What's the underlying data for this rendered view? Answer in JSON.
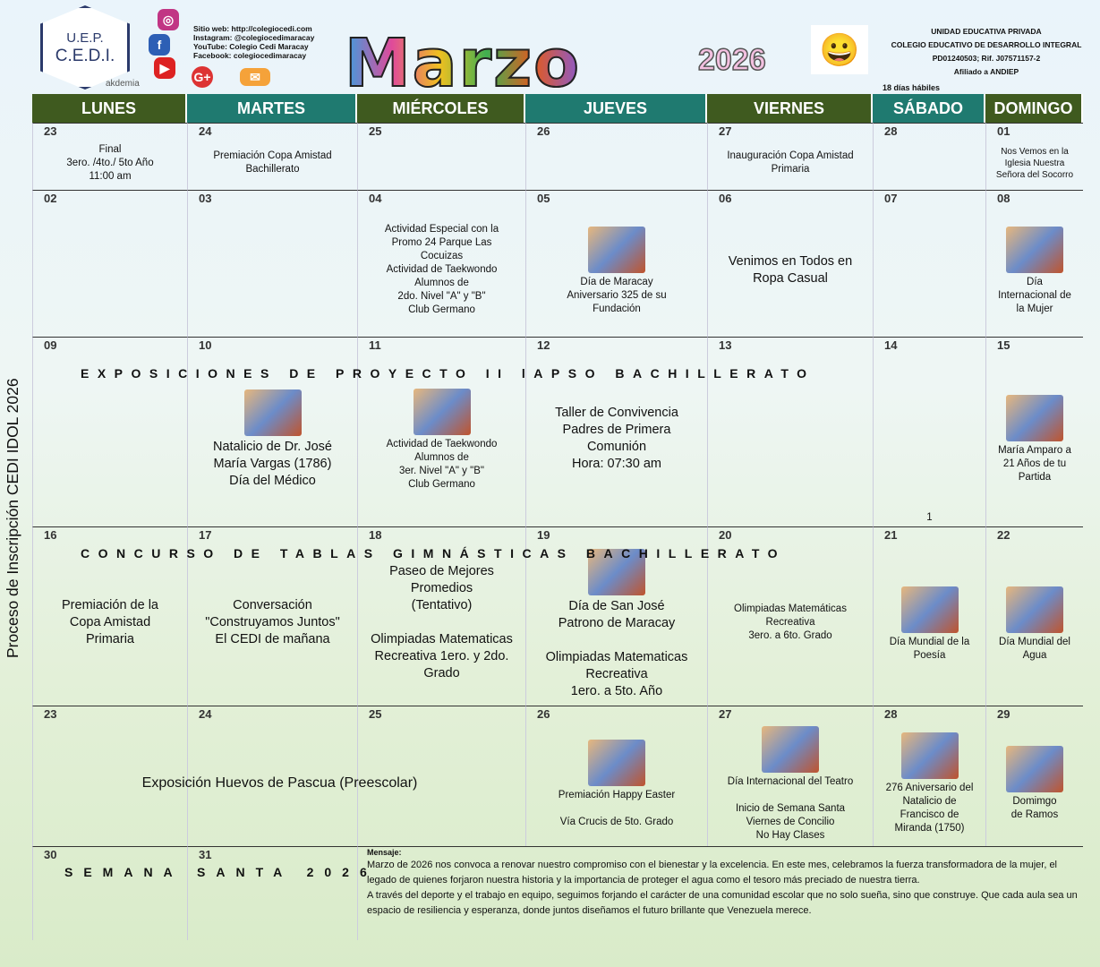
{
  "header": {
    "logo_line1": "U.E.P.",
    "logo_line2": "C.E.D.I.",
    "akdemia": "akdemia",
    "contact": [
      "Sitio web: http://colegiocedi.com",
      "Instagram: @colegiocedimaracay",
      "YouTube: Colegio Cedi Maracay",
      "Facebook: colegiocedimaracay"
    ],
    "social_icons": [
      "instagram-icon",
      "facebook-icon",
      "youtube-icon",
      "google-plus-icon",
      "email-icon"
    ],
    "month": "Marzo",
    "year": "2026",
    "school": [
      "UNIDAD EDUCATIVA PRIVADA",
      "COLEGIO EDUCATIVO DE DESARROLLO INTEGRAL",
      "PD01240503; Rif. J07571157-2",
      "Afiliado a ANDIEP"
    ],
    "business_days": "18 días hábiles"
  },
  "colors": {
    "header_olive": "#3f5a1f",
    "header_teal": "#1f7a70"
  },
  "weekdays": [
    "LUNES",
    "MARTES",
    "MIÉRCOLES",
    "JUEVES",
    "VIERNES",
    "SÁBADO",
    "DOMINGO"
  ],
  "side_text": "Proceso de Inscripción CEDI IDOL 2026",
  "weeks": [
    {
      "days": [
        {
          "n": "23",
          "t": "Final\n3ero. /4to./ 5to Año\n11:00 am",
          "c": "s"
        },
        {
          "n": "24",
          "t": "Premiación Copa Amistad\nBachillerato",
          "c": "s"
        },
        {
          "n": "25",
          "t": ""
        },
        {
          "n": "26",
          "t": ""
        },
        {
          "n": "27",
          "t": "Inauguración Copa Amistad\nPrimaria",
          "c": "s"
        },
        {
          "n": "28",
          "t": ""
        },
        {
          "n": "01",
          "t": "Nos Vemos en la\nIglesia Nuestra\nSeñora del Socorro",
          "c": "xs"
        }
      ]
    },
    {
      "days": [
        {
          "n": "02",
          "t": ""
        },
        {
          "n": "03",
          "t": ""
        },
        {
          "n": "04",
          "t": "Actividad Especial con la\nPromo 24 Parque Las\nCocuizas\nActividad de Taekwondo\nAlumnos de\n2do. Nivel \"A\" y \"B\"\nClub Germano",
          "c": "s"
        },
        {
          "n": "05",
          "t": "Día de Maracay\nAniversario 325 de su\nFundación",
          "c": "s",
          "pic": "maracay-image"
        },
        {
          "n": "06",
          "t": "Venimos en Todos en\nRopa Casual"
        },
        {
          "n": "07",
          "t": ""
        },
        {
          "n": "08",
          "t": "Día\nInternacional de\nla Mujer",
          "c": "s",
          "pic": "women-image"
        }
      ]
    },
    {
      "banner": "EXPOSICIONES DE PROYECTO II lAPSO BACHILLERATO",
      "days": [
        {
          "n": "09",
          "t": ""
        },
        {
          "n": "10",
          "t": "Natalicio de Dr. José\nMaría Vargas (1786)\nDía del Médico",
          "pic": "vargas-portrait"
        },
        {
          "n": "11",
          "t": "Actividad de Taekwondo\nAlumnos de\n3er. Nivel \"A\" y \"B\"\nClub Germano",
          "c": "s",
          "pic": "taekwondo-logo"
        },
        {
          "n": "12",
          "t": "Taller de Convivencia\nPadres de Primera\nComunión\nHora: 07:30 am"
        },
        {
          "n": "13",
          "t": ""
        },
        {
          "n": "14",
          "t": "1",
          "c": "s"
        },
        {
          "n": "15",
          "t": "María Amparo a\n21 Años de tu\nPartida",
          "c": "s",
          "pic": "memorial-image"
        }
      ]
    },
    {
      "banner": "CONCURSO DE TABLAS GIMNÁSTICAS BACHILLERATO",
      "days": [
        {
          "n": "16",
          "t": "Premiación de la\nCopa Amistad\nPrimaria"
        },
        {
          "n": "17",
          "t": "Conversación\n\"Construyamos Juntos\"\nEl CEDI de mañana"
        },
        {
          "n": "18",
          "t": "Paseo de Mejores\nPromedios\n(Tentativo)\n\nOlimpiadas Matematicas\nRecreativa 1ero. y 2do.\nGrado"
        },
        {
          "n": "19",
          "t": "Día de San José\nPatrono de Maracay\n\nOlimpiadas Matematicas\nRecreativa\n1ero. a 5to. Año",
          "pic": "san-jose-image"
        },
        {
          "n": "20",
          "t": "Olimpiadas Matemáticas\nRecreativa\n3ero. a 6to. Grado",
          "c": "s"
        },
        {
          "n": "21",
          "t": "Día Mundial de la\nPoesía",
          "c": "s",
          "pic": "book-image"
        },
        {
          "n": "22",
          "t": "Día Mundial del\nAgua",
          "c": "s",
          "pic": "earth-image"
        }
      ]
    },
    {
      "days": [
        {
          "n": "23",
          "t": "Exposición Huevos de Pascua (Preescolar)",
          "span": 3
        },
        {
          "n": "24",
          "t": ""
        },
        {
          "n": "25",
          "t": ""
        },
        {
          "n": "26",
          "t": "Premiación Happy Easter\n\nVía Crucis de 5to. Grado",
          "c": "s",
          "pic": "happy-easter-image"
        },
        {
          "n": "27",
          "t": "Día Internacional del Teatro\n\nInicio de Semana Santa\nViernes de Concilio\nNo Hay Clases",
          "c": "s",
          "pic": "theater-masks-image"
        },
        {
          "n": "28",
          "t": "276 Aniversario del\nNatalicio de\nFrancisco de\nMiranda (1750)",
          "c": "s",
          "pic": "miranda-flag-image"
        },
        {
          "n": "29",
          "t": "Domimgo\nde Ramos",
          "c": "s",
          "pic": "palm-sunday-image"
        }
      ]
    },
    {
      "banner": "SEMANA SANTA 2026",
      "days": [
        {
          "n": "30",
          "t": ""
        },
        {
          "n": "31",
          "t": ""
        }
      ]
    }
  ],
  "message": {
    "title": "Mensaje:",
    "paragraphs": [
      "Marzo de 2026 nos convoca a renovar nuestro compromiso con el bienestar y la excelencia. En este mes, celebramos la fuerza transformadora de la mujer, el legado de quienes forjaron nuestra historia y la importancia de proteger el agua como el tesoro más preciado de nuestra tierra.",
      "A través del deporte y el trabajo en equipo, seguimos forjando el carácter de una comunidad escolar que no solo sueña, sino que construye. Que cada aula sea un espacio de resiliencia y esperanza, donde juntos diseñamos el futuro brillante que Venezuela merece."
    ]
  }
}
